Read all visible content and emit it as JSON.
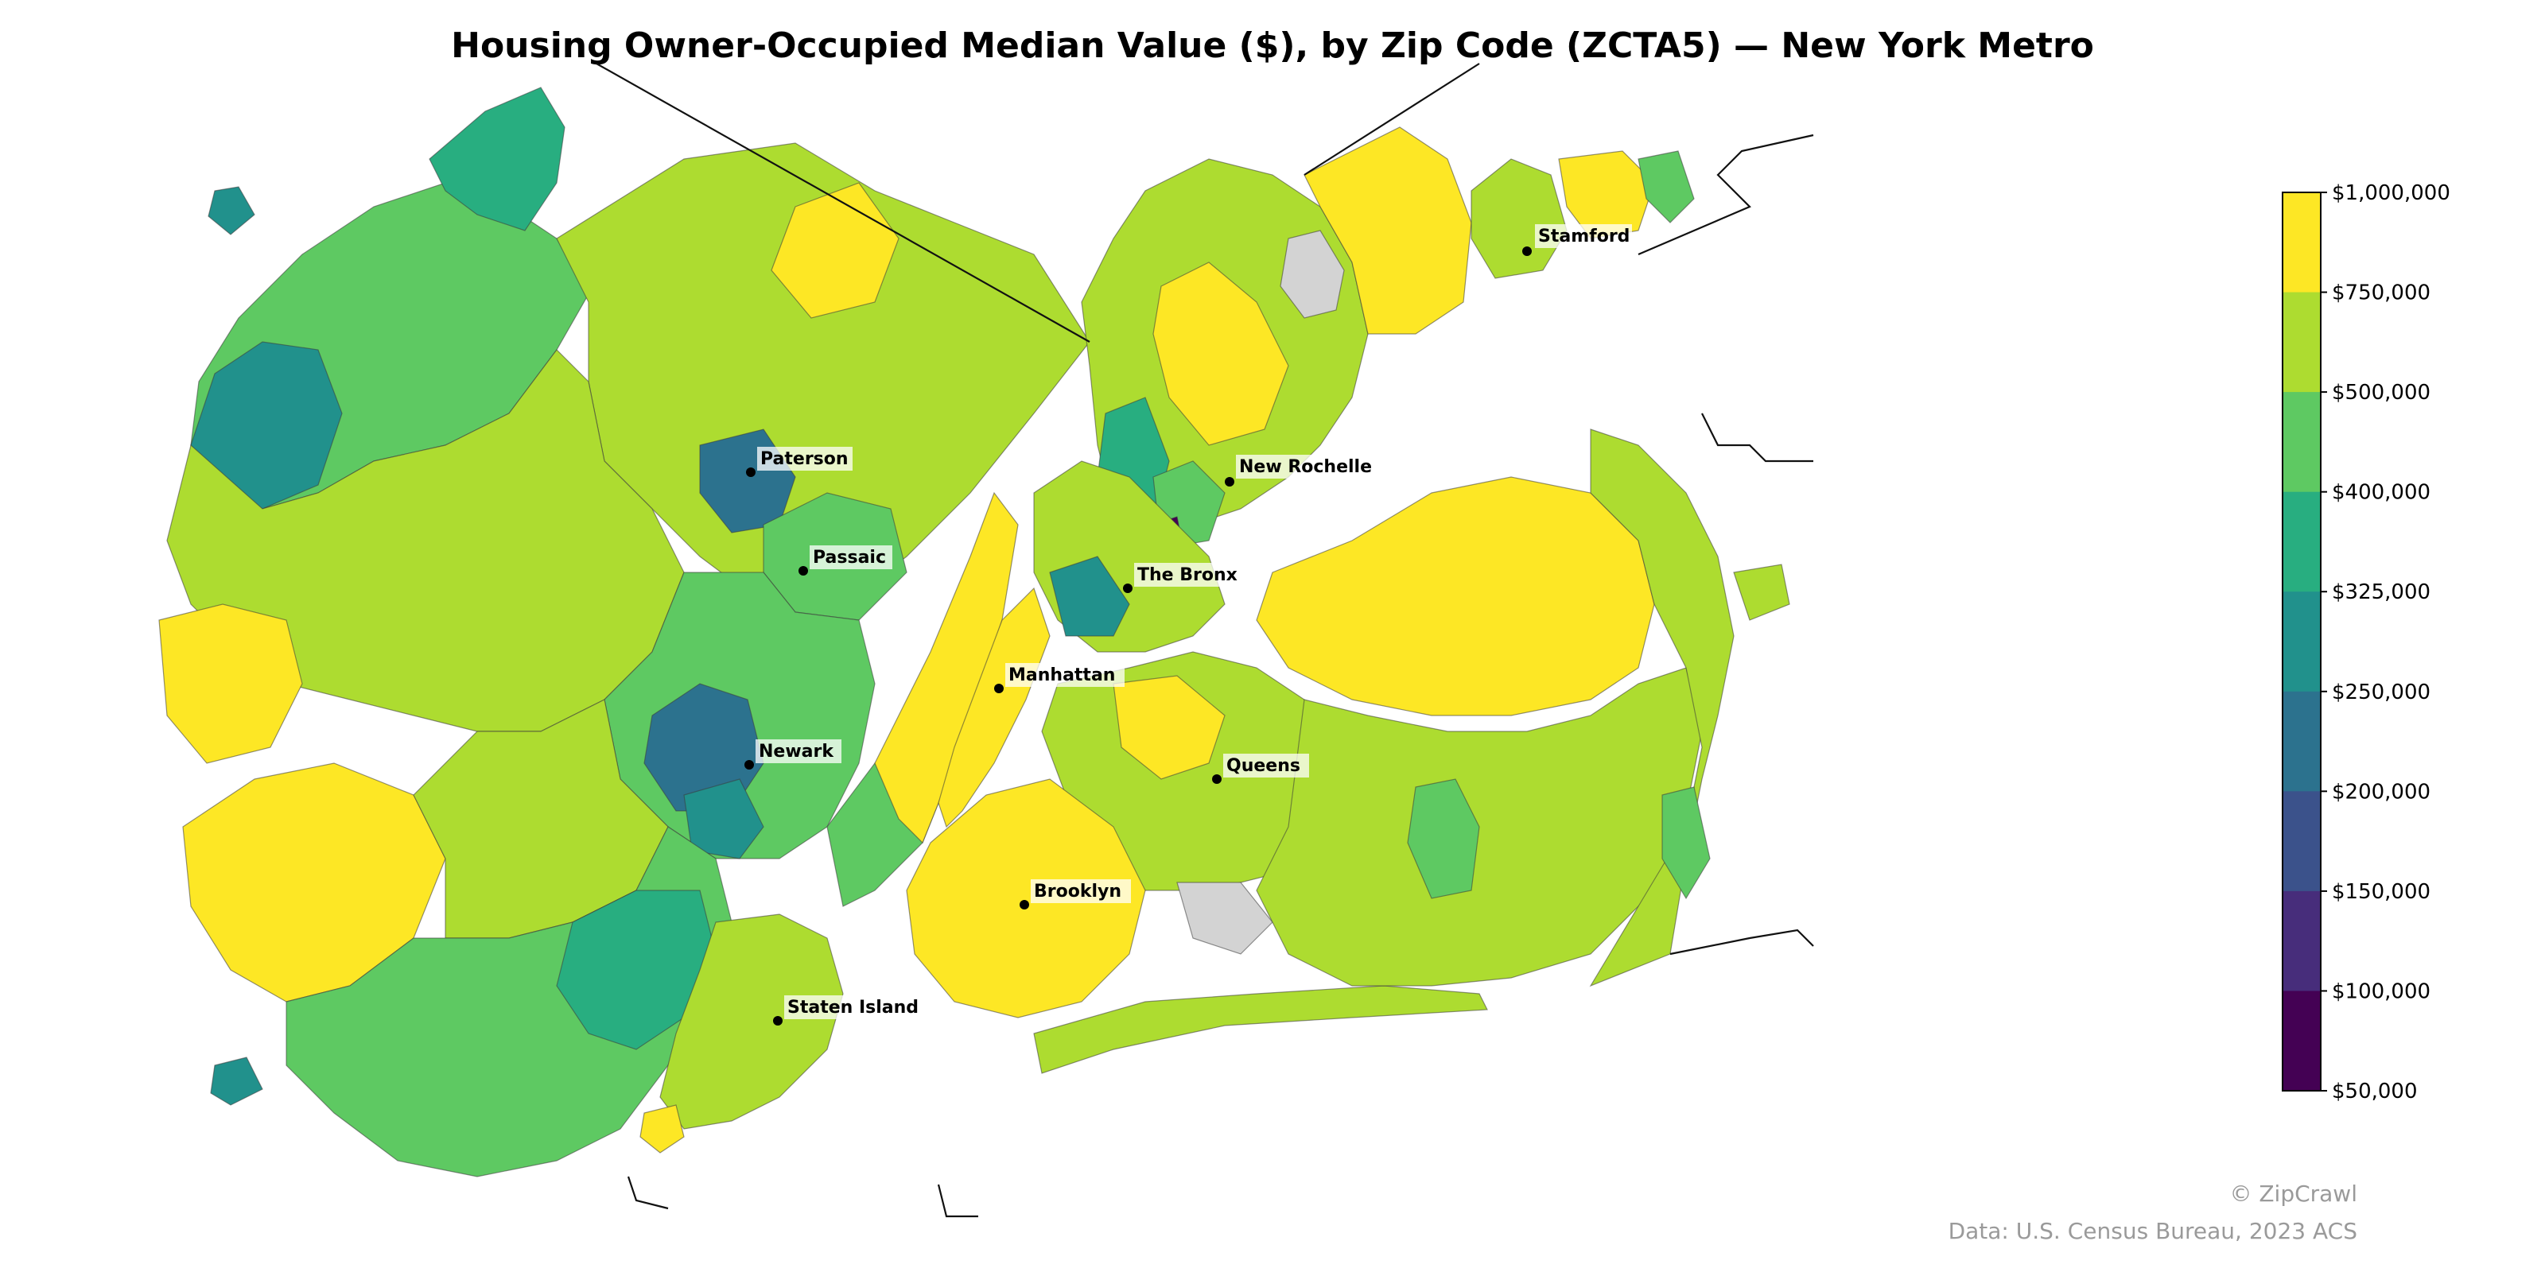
{
  "title": "Housing Owner-Occupied Median Value ($), by Zip Code (ZCTA5) — New York Metro",
  "colorbar": {
    "ticks": [
      "$1,000,000",
      "$750,000",
      "$500,000",
      "$400,000",
      "$325,000",
      "$250,000",
      "$200,000",
      "$150,000",
      "$100,000",
      "$50,000"
    ],
    "bins": [
      {
        "color": "#fde725",
        "min": 750000,
        "max": 1000000
      },
      {
        "color": "#addc30",
        "min": 500000,
        "max": 750000
      },
      {
        "color": "#5ec962",
        "min": 400000,
        "max": 500000
      },
      {
        "color": "#28ae80",
        "min": 325000,
        "max": 400000
      },
      {
        "color": "#21918c",
        "min": 250000,
        "max": 325000
      },
      {
        "color": "#2c728e",
        "min": 200000,
        "max": 250000
      },
      {
        "color": "#3b528b",
        "min": 150000,
        "max": 200000
      },
      {
        "color": "#472d7b",
        "min": 100000,
        "max": 150000
      },
      {
        "color": "#440154",
        "min": 50000,
        "max": 100000
      }
    ],
    "no_data_color": "#d3d3d3"
  },
  "cities": {
    "stamford": "Stamford",
    "paterson": "Paterson",
    "new_rochelle": "New Rochelle",
    "passaic": "Passaic",
    "the_bronx": "The Bronx",
    "manhattan": "Manhattan",
    "newark": "Newark",
    "queens": "Queens",
    "brooklyn": "Brooklyn",
    "staten_island": "Staten Island"
  },
  "credits": {
    "copyright": "© ZipCrawl",
    "source": "Data: U.S. Census Bureau, 2023 ACS"
  }
}
